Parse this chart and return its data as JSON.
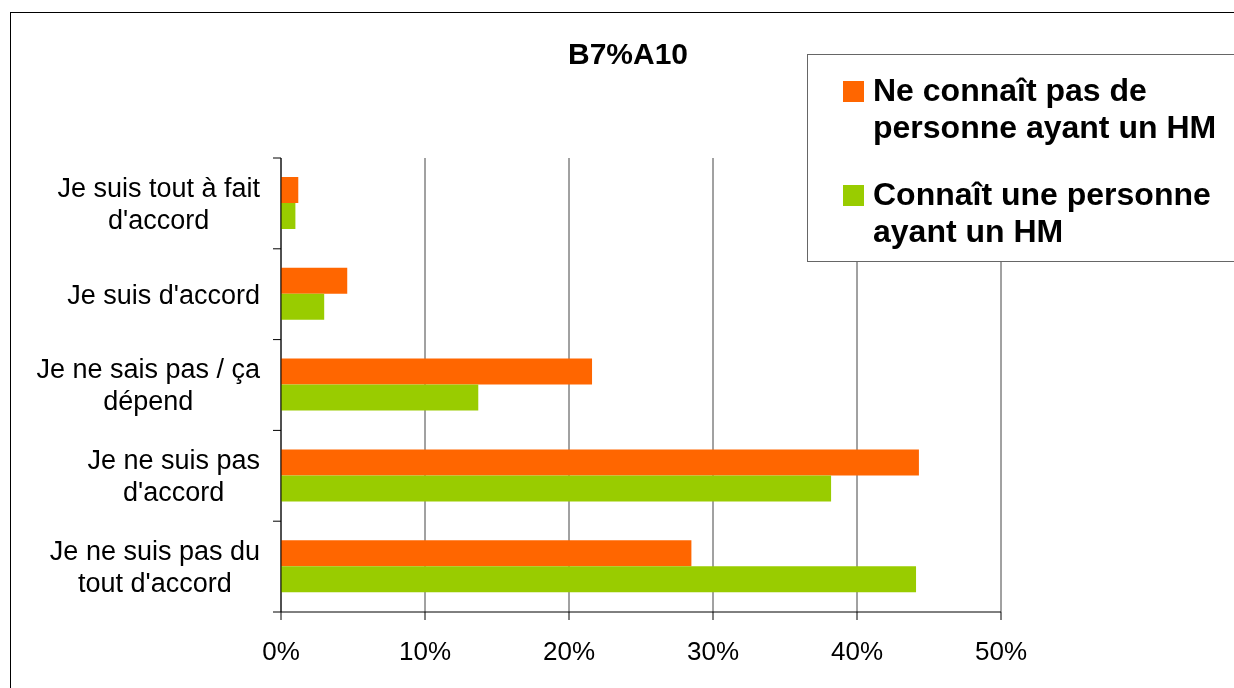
{
  "chart_data": {
    "type": "bar",
    "orientation": "horizontal",
    "title": "B7%A10",
    "categories": [
      "Je suis tout à fait d'accord",
      "Je suis d'accord",
      "Je ne sais pas / ça dépend",
      "Je ne suis pas d'accord",
      "Je ne suis pas du tout d'accord"
    ],
    "series": [
      {
        "name": "Ne connaît pas de personne ayant un HM",
        "color": "#ff6600",
        "values": [
          1.2,
          4.6,
          21.6,
          44.3,
          28.5
        ]
      },
      {
        "name": "Connaît une personne ayant un HM",
        "color": "#99cc00",
        "values": [
          1.0,
          3.0,
          13.7,
          38.2,
          44.1
        ]
      }
    ],
    "xlim": [
      0,
      50
    ],
    "xticks": [
      {
        "value": 0,
        "label": "0%"
      },
      {
        "value": 10,
        "label": "10%"
      },
      {
        "value": 20,
        "label": "20%"
      },
      {
        "value": 30,
        "label": "30%"
      },
      {
        "value": 40,
        "label": "40%"
      },
      {
        "value": 50,
        "label": "50%"
      }
    ],
    "grid": "x",
    "legend": "top right"
  }
}
